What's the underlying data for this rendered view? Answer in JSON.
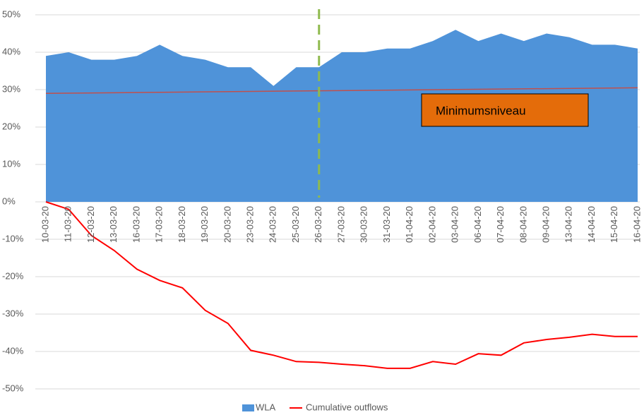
{
  "chart_data": {
    "type": "area_line",
    "categories": [
      "10-03-20",
      "11-03-20",
      "12-03-20",
      "13-03-20",
      "16-03-20",
      "17-03-20",
      "18-03-20",
      "19-03-20",
      "20-03-20",
      "23-03-20",
      "24-03-20",
      "25-03-20",
      "26-03-20",
      "27-03-20",
      "30-03-20",
      "31-03-20",
      "01-04-20",
      "02-04-20",
      "03-04-20",
      "06-04-20",
      "07-04-20",
      "08-04-20",
      "09-04-20",
      "13-04-20",
      "14-04-20",
      "15-04-20",
      "16-04-20"
    ],
    "series": [
      {
        "name": "WLA",
        "kind": "area",
        "color": "#4f93d9",
        "values": [
          39,
          40,
          38,
          38,
          39,
          42,
          39,
          38,
          36,
          36,
          31,
          36,
          36,
          40,
          40,
          41,
          41,
          43,
          46,
          43,
          45,
          43,
          45,
          44,
          42,
          42,
          41
        ]
      },
      {
        "name": "Cumulative outflows",
        "kind": "line",
        "color": "#ff0000",
        "values": [
          0,
          -2,
          -9,
          -13,
          -18,
          -21,
          -23,
          -29,
          -32.5,
          -39.7,
          -41,
          -42.7,
          -42.9,
          -43.4,
          -43.8,
          -44.5,
          -44.5,
          -42.7,
          -43.4,
          -40.6,
          -41,
          -37.7,
          -36.8,
          -36.2,
          -35.4,
          -36,
          -36
        ]
      }
    ],
    "reference_line": {
      "color": "#c0504d",
      "values": [
        29,
        30.5
      ]
    },
    "annotation": {
      "text": "Minimumsniveau",
      "color": "#e46c0a"
    },
    "vline": {
      "category": "26-03-20",
      "color": "#8fba4e"
    },
    "ylim": [
      -50,
      50
    ],
    "yticks": [
      {
        "value": -50,
        "label": "-50%"
      },
      {
        "value": -40,
        "label": "-40%"
      },
      {
        "value": -30,
        "label": "-30%"
      },
      {
        "value": -20,
        "label": "-20%"
      },
      {
        "value": -10,
        "label": "-10%"
      },
      {
        "value": 0,
        "label": "0%"
      },
      {
        "value": 10,
        "label": "10%"
      },
      {
        "value": 20,
        "label": "20%"
      },
      {
        "value": 30,
        "label": "30%"
      },
      {
        "value": 40,
        "label": "40%"
      },
      {
        "value": 50,
        "label": "50%"
      }
    ],
    "grid": true
  }
}
